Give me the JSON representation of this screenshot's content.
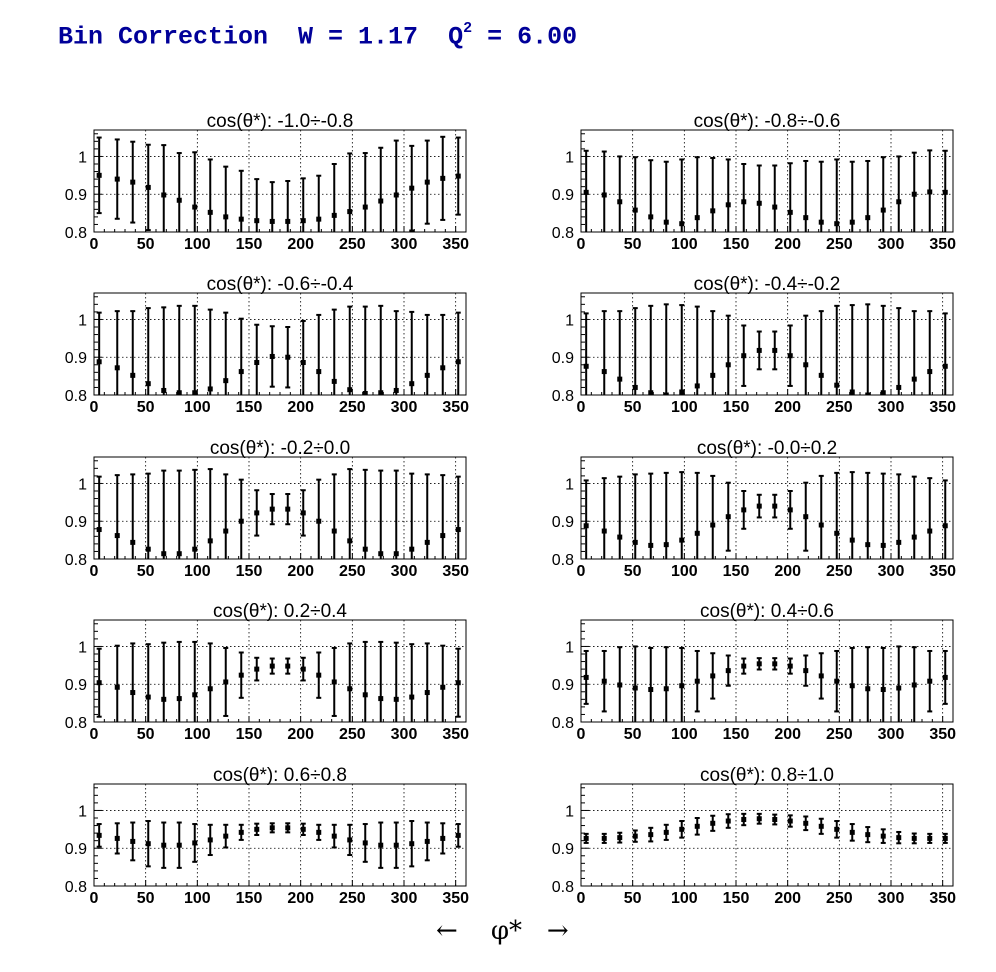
{
  "title": {
    "prefix": "Bin Correction  W = 1.17  Q",
    "sup": "2",
    "suffix": " = 6.00"
  },
  "xlabel": "←    φ*   →",
  "chart_data": [
    {
      "type": "scatter",
      "title": "cos(θ*): -1.0÷-0.8",
      "x": [
        5,
        22.5,
        37.5,
        52.5,
        67.5,
        82.5,
        97.5,
        112.5,
        127.5,
        142.5,
        157.5,
        172.5,
        187.5,
        202.5,
        217.5,
        232.5,
        247.5,
        262.5,
        277.5,
        292.5,
        307.5,
        322.5,
        337.5,
        352.5
      ],
      "y": [
        0.95,
        0.94,
        0.932,
        0.918,
        0.898,
        0.884,
        0.866,
        0.852,
        0.84,
        0.834,
        0.83,
        0.828,
        0.828,
        0.83,
        0.834,
        0.844,
        0.854,
        0.866,
        0.882,
        0.898,
        0.916,
        0.932,
        0.942,
        0.948
      ],
      "err": [
        0.1,
        0.105,
        0.107,
        0.113,
        0.132,
        0.125,
        0.145,
        0.14,
        0.133,
        0.128,
        0.11,
        0.104,
        0.107,
        0.112,
        0.115,
        0.136,
        0.154,
        0.143,
        0.141,
        0.144,
        0.112,
        0.11,
        0.11,
        0.102
      ],
      "xlim": [
        0,
        360
      ],
      "ylim": [
        0.8,
        1.07
      ],
      "xticks": [
        0,
        50,
        100,
        150,
        200,
        250,
        300,
        350
      ],
      "yticks": [
        "0.8",
        "0.9",
        "1"
      ],
      "grid": true
    },
    {
      "type": "scatter",
      "title": "cos(θ*): -0.8÷-0.6",
      "x": [
        5,
        22.5,
        37.5,
        52.5,
        67.5,
        82.5,
        97.5,
        112.5,
        127.5,
        142.5,
        157.5,
        172.5,
        187.5,
        202.5,
        217.5,
        232.5,
        247.5,
        262.5,
        277.5,
        292.5,
        307.5,
        322.5,
        337.5,
        352.5
      ],
      "y": [
        0.905,
        0.898,
        0.88,
        0.858,
        0.84,
        0.826,
        0.822,
        0.838,
        0.856,
        0.872,
        0.88,
        0.876,
        0.866,
        0.852,
        0.838,
        0.826,
        0.822,
        0.826,
        0.838,
        0.858,
        0.88,
        0.9,
        0.906,
        0.905
      ],
      "err": [
        0.11,
        0.115,
        0.12,
        0.14,
        0.15,
        0.16,
        0.17,
        0.16,
        0.14,
        0.12,
        0.1,
        0.1,
        0.11,
        0.13,
        0.15,
        0.16,
        0.17,
        0.16,
        0.15,
        0.14,
        0.12,
        0.11,
        0.11,
        0.11
      ],
      "xlim": [
        0,
        360
      ],
      "ylim": [
        0.8,
        1.07
      ],
      "xticks": [
        0,
        50,
        100,
        150,
        200,
        250,
        300,
        350
      ],
      "yticks": [
        "0.8",
        "0.9",
        "1"
      ],
      "grid": true
    },
    {
      "type": "scatter",
      "title": "cos(θ*): -0.6÷-0.4",
      "x": [
        5,
        22.5,
        37.5,
        52.5,
        67.5,
        82.5,
        97.5,
        112.5,
        127.5,
        142.5,
        157.5,
        172.5,
        187.5,
        202.5,
        217.5,
        232.5,
        247.5,
        262.5,
        277.5,
        292.5,
        307.5,
        322.5,
        337.5,
        352.5
      ],
      "y": [
        0.888,
        0.872,
        0.852,
        0.83,
        0.812,
        0.806,
        0.806,
        0.816,
        0.838,
        0.862,
        0.886,
        0.902,
        0.9,
        0.886,
        0.862,
        0.836,
        0.814,
        0.804,
        0.806,
        0.812,
        0.83,
        0.852,
        0.872,
        0.888
      ],
      "err": [
        0.13,
        0.15,
        0.17,
        0.2,
        0.22,
        0.23,
        0.23,
        0.21,
        0.18,
        0.14,
        0.1,
        0.08,
        0.08,
        0.11,
        0.15,
        0.19,
        0.22,
        0.23,
        0.23,
        0.21,
        0.19,
        0.16,
        0.14,
        0.13
      ],
      "xlim": [
        0,
        360
      ],
      "ylim": [
        0.8,
        1.07
      ],
      "xticks": [
        0,
        50,
        100,
        150,
        200,
        250,
        300,
        350
      ],
      "yticks": [
        "0.8",
        "0.9",
        "1"
      ],
      "grid": true
    },
    {
      "type": "scatter",
      "title": "cos(θ*): -0.4÷-0.2",
      "x": [
        5,
        22.5,
        37.5,
        52.5,
        67.5,
        82.5,
        97.5,
        112.5,
        127.5,
        142.5,
        157.5,
        172.5,
        187.5,
        202.5,
        217.5,
        232.5,
        247.5,
        262.5,
        277.5,
        292.5,
        307.5,
        322.5,
        337.5,
        352.5
      ],
      "y": [
        0.876,
        0.862,
        0.842,
        0.82,
        0.806,
        0.8,
        0.808,
        0.824,
        0.852,
        0.88,
        0.904,
        0.918,
        0.918,
        0.904,
        0.88,
        0.852,
        0.826,
        0.808,
        0.8,
        0.806,
        0.82,
        0.842,
        0.862,
        0.876
      ],
      "err": [
        0.14,
        0.16,
        0.18,
        0.21,
        0.23,
        0.24,
        0.23,
        0.21,
        0.17,
        0.13,
        0.08,
        0.05,
        0.05,
        0.08,
        0.13,
        0.17,
        0.21,
        0.23,
        0.24,
        0.23,
        0.21,
        0.18,
        0.16,
        0.14
      ],
      "xlim": [
        0,
        360
      ],
      "ylim": [
        0.8,
        1.07
      ],
      "xticks": [
        0,
        50,
        100,
        150,
        200,
        250,
        300,
        350
      ],
      "yticks": [
        "0.8",
        "0.9",
        "1"
      ],
      "grid": true
    },
    {
      "type": "scatter",
      "title": "cos(θ*): -0.2÷0.0",
      "x": [
        5,
        22.5,
        37.5,
        52.5,
        67.5,
        82.5,
        97.5,
        112.5,
        127.5,
        142.5,
        157.5,
        172.5,
        187.5,
        202.5,
        217.5,
        232.5,
        247.5,
        262.5,
        277.5,
        292.5,
        307.5,
        322.5,
        337.5,
        352.5
      ],
      "y": [
        0.878,
        0.862,
        0.844,
        0.826,
        0.814,
        0.814,
        0.826,
        0.848,
        0.874,
        0.9,
        0.922,
        0.932,
        0.932,
        0.922,
        0.9,
        0.874,
        0.848,
        0.826,
        0.814,
        0.814,
        0.826,
        0.844,
        0.862,
        0.878
      ],
      "err": [
        0.14,
        0.16,
        0.18,
        0.2,
        0.22,
        0.22,
        0.21,
        0.19,
        0.15,
        0.11,
        0.06,
        0.04,
        0.04,
        0.06,
        0.11,
        0.15,
        0.19,
        0.21,
        0.22,
        0.22,
        0.2,
        0.18,
        0.16,
        0.14
      ],
      "xlim": [
        0,
        360
      ],
      "ylim": [
        0.8,
        1.07
      ],
      "xticks": [
        0,
        50,
        100,
        150,
        200,
        250,
        300,
        350
      ],
      "yticks": [
        "0.8",
        "0.9",
        "1"
      ],
      "grid": true
    },
    {
      "type": "scatter",
      "title": "cos(θ*): -0.0÷0.2",
      "x": [
        5,
        22.5,
        37.5,
        52.5,
        67.5,
        82.5,
        97.5,
        112.5,
        127.5,
        142.5,
        157.5,
        172.5,
        187.5,
        202.5,
        217.5,
        232.5,
        247.5,
        262.5,
        277.5,
        292.5,
        307.5,
        322.5,
        337.5,
        352.5
      ],
      "y": [
        0.888,
        0.874,
        0.858,
        0.844,
        0.836,
        0.838,
        0.85,
        0.868,
        0.89,
        0.912,
        0.93,
        0.94,
        0.94,
        0.93,
        0.912,
        0.89,
        0.868,
        0.85,
        0.838,
        0.836,
        0.844,
        0.858,
        0.874,
        0.888
      ],
      "err": [
        0.12,
        0.14,
        0.16,
        0.18,
        0.19,
        0.19,
        0.18,
        0.16,
        0.13,
        0.09,
        0.05,
        0.03,
        0.03,
        0.05,
        0.09,
        0.13,
        0.16,
        0.18,
        0.19,
        0.19,
        0.18,
        0.16,
        0.14,
        0.12
      ],
      "xlim": [
        0,
        360
      ],
      "ylim": [
        0.8,
        1.07
      ],
      "xticks": [
        0,
        50,
        100,
        150,
        200,
        250,
        300,
        350
      ],
      "yticks": [
        "0.8",
        "0.9",
        "1"
      ],
      "grid": true
    },
    {
      "type": "scatter",
      "title": "cos(θ*): 0.2÷0.4",
      "x": [
        5,
        22.5,
        37.5,
        52.5,
        67.5,
        82.5,
        97.5,
        112.5,
        127.5,
        142.5,
        157.5,
        172.5,
        187.5,
        202.5,
        217.5,
        232.5,
        247.5,
        262.5,
        277.5,
        292.5,
        307.5,
        322.5,
        337.5,
        352.5
      ],
      "y": [
        0.904,
        0.892,
        0.878,
        0.866,
        0.86,
        0.862,
        0.872,
        0.888,
        0.906,
        0.924,
        0.94,
        0.948,
        0.948,
        0.94,
        0.924,
        0.906,
        0.888,
        0.872,
        0.862,
        0.86,
        0.866,
        0.878,
        0.892,
        0.904
      ],
      "err": [
        0.09,
        0.11,
        0.13,
        0.14,
        0.15,
        0.15,
        0.14,
        0.12,
        0.09,
        0.06,
        0.03,
        0.02,
        0.02,
        0.03,
        0.06,
        0.09,
        0.12,
        0.14,
        0.15,
        0.15,
        0.14,
        0.13,
        0.11,
        0.09
      ],
      "xlim": [
        0,
        360
      ],
      "ylim": [
        0.8,
        1.07
      ],
      "xticks": [
        0,
        50,
        100,
        150,
        200,
        250,
        300,
        350
      ],
      "yticks": [
        "0.8",
        "0.9",
        "1"
      ],
      "grid": true
    },
    {
      "type": "scatter",
      "title": "cos(θ*): 0.4÷0.6",
      "x": [
        5,
        22.5,
        37.5,
        52.5,
        67.5,
        82.5,
        97.5,
        112.5,
        127.5,
        142.5,
        157.5,
        172.5,
        187.5,
        202.5,
        217.5,
        232.5,
        247.5,
        262.5,
        277.5,
        292.5,
        307.5,
        322.5,
        337.5,
        352.5
      ],
      "y": [
        0.918,
        0.908,
        0.898,
        0.89,
        0.886,
        0.888,
        0.896,
        0.908,
        0.922,
        0.936,
        0.948,
        0.954,
        0.954,
        0.948,
        0.936,
        0.922,
        0.908,
        0.896,
        0.888,
        0.886,
        0.89,
        0.898,
        0.908,
        0.918
      ],
      "err": [
        0.07,
        0.08,
        0.1,
        0.11,
        0.11,
        0.11,
        0.1,
        0.08,
        0.06,
        0.04,
        0.02,
        0.015,
        0.015,
        0.02,
        0.04,
        0.06,
        0.08,
        0.1,
        0.11,
        0.11,
        0.11,
        0.1,
        0.08,
        0.07
      ],
      "xlim": [
        0,
        360
      ],
      "ylim": [
        0.8,
        1.07
      ],
      "xticks": [
        0,
        50,
        100,
        150,
        200,
        250,
        300,
        350
      ],
      "yticks": [
        "0.8",
        "0.9",
        "1"
      ],
      "grid": true
    },
    {
      "type": "scatter",
      "title": "cos(θ*): 0.6÷0.8",
      "x": [
        5,
        22.5,
        37.5,
        52.5,
        67.5,
        82.5,
        97.5,
        112.5,
        127.5,
        142.5,
        157.5,
        172.5,
        187.5,
        202.5,
        217.5,
        232.5,
        247.5,
        262.5,
        277.5,
        292.5,
        307.5,
        322.5,
        337.5,
        352.5
      ],
      "y": [
        0.934,
        0.926,
        0.918,
        0.912,
        0.908,
        0.908,
        0.914,
        0.922,
        0.932,
        0.942,
        0.95,
        0.954,
        0.954,
        0.95,
        0.942,
        0.932,
        0.922,
        0.914,
        0.908,
        0.908,
        0.912,
        0.918,
        0.926,
        0.934
      ],
      "err": [
        0.03,
        0.04,
        0.05,
        0.06,
        0.06,
        0.06,
        0.05,
        0.04,
        0.03,
        0.02,
        0.015,
        0.012,
        0.012,
        0.015,
        0.02,
        0.03,
        0.04,
        0.05,
        0.06,
        0.06,
        0.06,
        0.05,
        0.04,
        0.03
      ],
      "xlim": [
        0,
        360
      ],
      "ylim": [
        0.8,
        1.07
      ],
      "xticks": [
        0,
        50,
        100,
        150,
        200,
        250,
        300,
        350
      ],
      "yticks": [
        "0.8",
        "0.9",
        "1"
      ],
      "grid": true
    },
    {
      "type": "scatter",
      "title": "cos(θ*): 0.8÷1.0",
      "x": [
        5,
        22.5,
        37.5,
        52.5,
        67.5,
        82.5,
        97.5,
        112.5,
        127.5,
        142.5,
        157.5,
        172.5,
        187.5,
        202.5,
        217.5,
        232.5,
        247.5,
        262.5,
        277.5,
        292.5,
        307.5,
        322.5,
        337.5,
        352.5
      ],
      "y": [
        0.926,
        0.926,
        0.928,
        0.932,
        0.936,
        0.942,
        0.95,
        0.958,
        0.966,
        0.972,
        0.976,
        0.978,
        0.976,
        0.972,
        0.966,
        0.958,
        0.95,
        0.942,
        0.936,
        0.932,
        0.928,
        0.926,
        0.926,
        0.926
      ],
      "err": [
        0.012,
        0.012,
        0.013,
        0.015,
        0.018,
        0.02,
        0.022,
        0.022,
        0.02,
        0.018,
        0.015,
        0.013,
        0.013,
        0.015,
        0.018,
        0.02,
        0.022,
        0.022,
        0.02,
        0.018,
        0.015,
        0.013,
        0.012,
        0.012
      ],
      "xlim": [
        0,
        360
      ],
      "ylim": [
        0.8,
        1.07
      ],
      "xticks": [
        0,
        50,
        100,
        150,
        200,
        250,
        300,
        350
      ],
      "yticks": [
        "0.8",
        "0.9",
        "1"
      ],
      "grid": true
    }
  ]
}
